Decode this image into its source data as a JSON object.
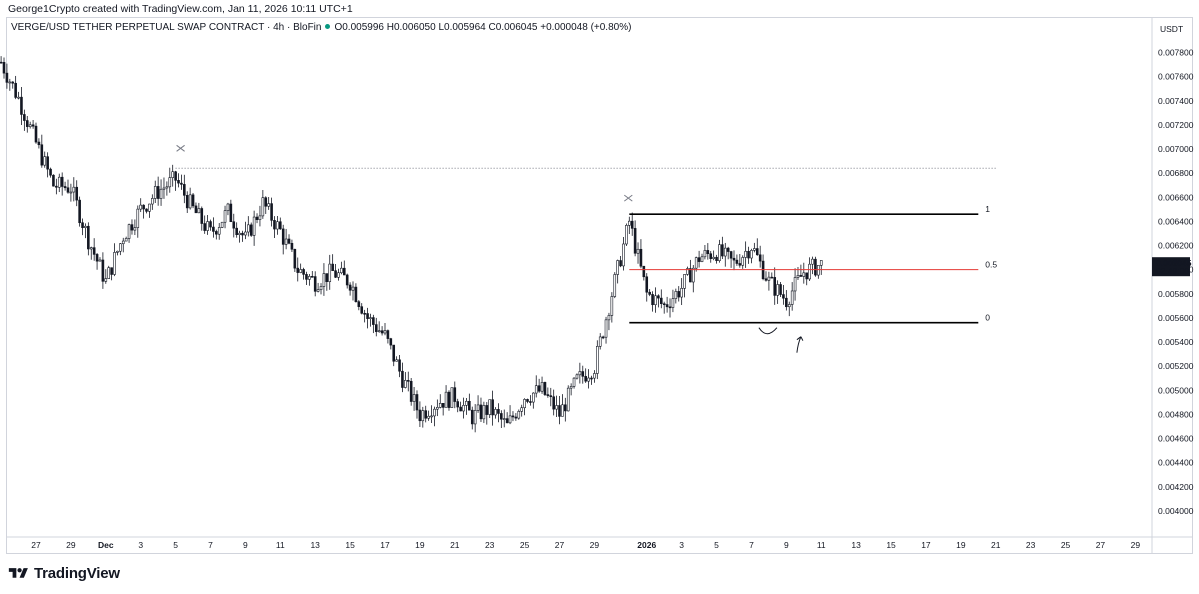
{
  "header": {
    "credit": "George1Crypto created with TradingView.com, Jan 11, 2026 10:11 UTC+1"
  },
  "legend": {
    "symbol": "VERGE/USD TETHER PERPETUAL SWAP CONTRACT",
    "interval": "4h",
    "exchange": "BloFin",
    "open": "O0.005996",
    "high": "H0.006050",
    "low": "L0.005964",
    "close": "C0.006045",
    "change": "+0.000048 (+0.80%)"
  },
  "price_scale": {
    "currency": "USDT",
    "last_price": "0.006045",
    "countdown": "02:49:00",
    "last_price_color": "#131722"
  },
  "footer": {
    "brand": "TradingView"
  },
  "colors": {
    "candle": "#131722",
    "fib_mid": "#e53935",
    "fib_edge": "#000000",
    "resistance_dotted": "#787b86",
    "grid_border": "#d1d4dc"
  },
  "chart_data": {
    "type": "candlestick",
    "title": "",
    "xlabel": "",
    "ylabel": "",
    "x_axis_labels": [
      "27",
      "29",
      "Dec",
      "3",
      "5",
      "7",
      "9",
      "11",
      "13",
      "15",
      "17",
      "19",
      "21",
      "23",
      "25",
      "27",
      "29",
      "2026",
      "3",
      "5",
      "7",
      "9",
      "11",
      "13",
      "15",
      "17",
      "19",
      "21",
      "23",
      "25",
      "27",
      "29"
    ],
    "x_axis_bold": [
      "Dec",
      "2026"
    ],
    "y_ticks": [
      "0.007800",
      "0.007600",
      "0.007400",
      "0.007200",
      "0.007000",
      "0.006800",
      "0.006600",
      "0.006400",
      "0.006200",
      "0.006000",
      "0.005800",
      "0.005600",
      "0.005400",
      "0.005200",
      "0.005000",
      "0.004800",
      "0.004600",
      "0.004400",
      "0.004200",
      "0.004000"
    ],
    "ylim": [
      0.0038,
      0.00797
    ],
    "price_path": [
      {
        "date": "Nov 25",
        "price": 0.00772
      },
      {
        "date": "Nov 26",
        "price": 0.00742
      },
      {
        "date": "Nov 27",
        "price": 0.00705
      },
      {
        "date": "Nov 28",
        "price": 0.0067
      },
      {
        "date": "Nov 29",
        "price": 0.00668
      },
      {
        "date": "Nov 30",
        "price": 0.00625
      },
      {
        "date": "Dec 1",
        "price": 0.0059
      },
      {
        "date": "Dec 2",
        "price": 0.00628
      },
      {
        "date": "Dec 3",
        "price": 0.0065
      },
      {
        "date": "Dec 4",
        "price": 0.00665
      },
      {
        "date": "Dec 5",
        "price": 0.00675
      },
      {
        "date": "Dec 6",
        "price": 0.0065
      },
      {
        "date": "Dec 7",
        "price": 0.0063
      },
      {
        "date": "Dec 8",
        "price": 0.00648
      },
      {
        "date": "Dec 9",
        "price": 0.00625
      },
      {
        "date": "Dec 10",
        "price": 0.00655
      },
      {
        "date": "Dec 11",
        "price": 0.00632
      },
      {
        "date": "Dec 12",
        "price": 0.006
      },
      {
        "date": "Dec 13",
        "price": 0.0059
      },
      {
        "date": "Dec 14",
        "price": 0.00598
      },
      {
        "date": "Dec 15",
        "price": 0.0059
      },
      {
        "date": "Dec 16",
        "price": 0.0056
      },
      {
        "date": "Dec 17",
        "price": 0.00545
      },
      {
        "date": "Dec 18",
        "price": 0.0051
      },
      {
        "date": "Dec 19",
        "price": 0.0048
      },
      {
        "date": "Dec 20",
        "price": 0.0049
      },
      {
        "date": "Dec 21",
        "price": 0.00495
      },
      {
        "date": "Dec 22",
        "price": 0.00478
      },
      {
        "date": "Dec 23",
        "price": 0.00485
      },
      {
        "date": "Dec 24",
        "price": 0.0047
      },
      {
        "date": "Dec 25",
        "price": 0.00495
      },
      {
        "date": "Dec 26",
        "price": 0.005
      },
      {
        "date": "Dec 27",
        "price": 0.0048
      },
      {
        "date": "Dec 28",
        "price": 0.00508
      },
      {
        "date": "Dec 29",
        "price": 0.0052
      },
      {
        "date": "Dec 30",
        "price": 0.0058
      },
      {
        "date": "Dec 31",
        "price": 0.0064
      },
      {
        "date": "Jan 1",
        "price": 0.0058
      },
      {
        "date": "Jan 2",
        "price": 0.0057
      },
      {
        "date": "Jan 3",
        "price": 0.00585
      },
      {
        "date": "Jan 4",
        "price": 0.0061
      },
      {
        "date": "Jan 5",
        "price": 0.00615
      },
      {
        "date": "Jan 6",
        "price": 0.00605
      },
      {
        "date": "Jan 7",
        "price": 0.0062
      },
      {
        "date": "Jan 8",
        "price": 0.0059
      },
      {
        "date": "Jan 9",
        "price": 0.00575
      },
      {
        "date": "Jan 10",
        "price": 0.00598
      },
      {
        "date": "Jan 11",
        "price": 0.006045
      }
    ],
    "annotations": {
      "resistance_level": 0.00684,
      "fib_retracement": {
        "levels": [
          {
            "label": "1",
            "price": 0.00646
          },
          {
            "label": "0.5",
            "price": 0.006
          },
          {
            "label": "0",
            "price": 0.00556
          }
        ]
      }
    }
  }
}
